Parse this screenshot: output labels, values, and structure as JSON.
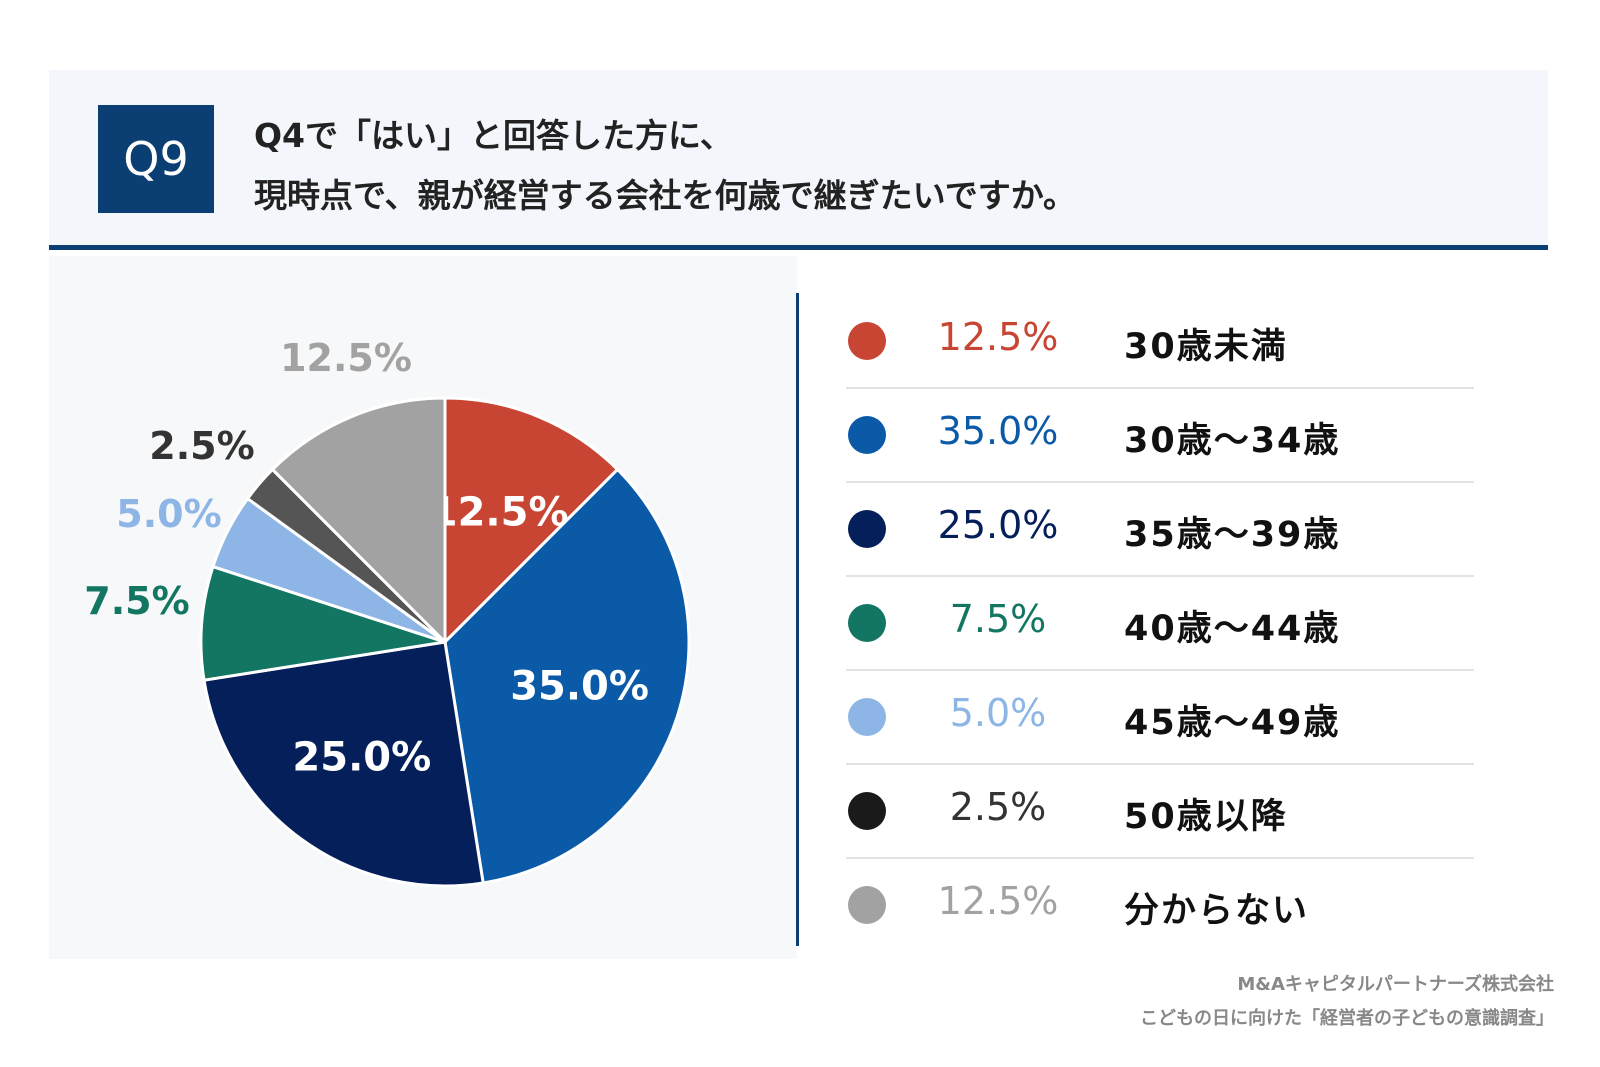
{
  "header": {
    "badge": "Q9",
    "question_line1": "Q4で「はい」と回答した方に、",
    "question_line2": "現時点で、親が経営する会社を何歳で継ぎたいですか。"
  },
  "chart_data": {
    "type": "pie",
    "start_angle": "12 o'clock, clockwise",
    "slices": [
      {
        "label": "30歳未満",
        "value": 12.5,
        "pct_text": "12.5%",
        "color": "#c84533",
        "label_inside": true,
        "inside_text_color": "#ffffff",
        "pct_color": "#c84533"
      },
      {
        "label": "30歳～34歳",
        "value": 35.0,
        "pct_text": "35.0%",
        "color": "#0b5aa8",
        "label_inside": true,
        "inside_text_color": "#ffffff",
        "pct_color": "#0b5aa8"
      },
      {
        "label": "35歳～39歳",
        "value": 25.0,
        "pct_text": "25.0%",
        "color": "#041f5a",
        "label_inside": true,
        "inside_text_color": "#ffffff",
        "pct_color": "#041f5a"
      },
      {
        "label": "40歳～44歳",
        "value": 7.5,
        "pct_text": "7.5%",
        "color": "#137662",
        "label_inside": false,
        "pct_color": "#137662"
      },
      {
        "label": "45歳～49歳",
        "value": 5.0,
        "pct_text": "5.0%",
        "color": "#8db6e6",
        "label_inside": false,
        "pct_color": "#8db6e6"
      },
      {
        "label": "50歳以降",
        "value": 2.5,
        "pct_text": "2.5%",
        "color": "#555555",
        "label_inside": false,
        "pct_color": "#333333",
        "legend_color": "#1a1a1a"
      },
      {
        "label": "分からない",
        "value": 12.5,
        "pct_text": "12.5%",
        "color": "#a2a2a2",
        "label_inside": false,
        "pct_color": "#a2a2a2"
      }
    ]
  },
  "source": {
    "line1": "M&Aキャピタルパートナーズ株式会社",
    "line2": "こどもの日に向けた「経営者の子どもの意識調査」"
  }
}
